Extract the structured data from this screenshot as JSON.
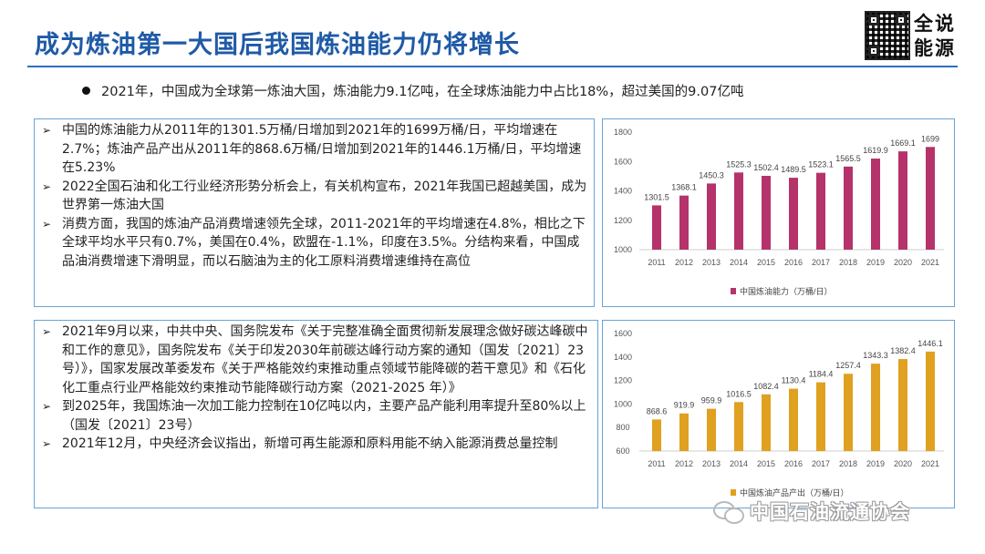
{
  "title": "成为炼油第一大国后我国炼油能力仍将增长",
  "logo": {
    "line1": "全说",
    "line2": "能源"
  },
  "top_bullet": "2021年，中国成为全球第一炼油大国，炼油能力9.1亿吨，在全球炼油能力中占比18%，超过美国的9.07亿吨",
  "box1": {
    "items": [
      "中国的炼油能力从2011年的1301.5万桶/日增加到2021年的1699万桶/日，平均增速在2.7%；炼油产品产出从2011年的868.6万桶/日增加到2021年的1446.1万桶/日，平均增速在5.23%",
      "2022全国石油和化工行业经济形势分析会上，有关机构宣布，2021年我国已超越美国，成为世界第一炼油大国",
      "消费方面，我国的炼油产品消费增速领先全球，2011-2021年的平均增速在4.8%，相比之下全球平均水平只有0.7%，美国在0.4%，欧盟在-1.1%，印度在3.5%。分结构来看，中国成品油消费增速下滑明显，而以石脑油为主的化工原料消费增速维持在高位"
    ]
  },
  "box2": {
    "items": [
      "2021年9月以来，中共中央、国务院发布《关于完整准确全面贯彻新发展理念做好碳达峰碳中和工作的意见》，国务院发布《关于印发2030年前碳达峰行动方案的通知（国发〔2021〕23号）》，国家发展改革委发布《关于严格能效约束推动重点领域节能降碳的若干意见》和《石化化工重点行业严格能效约束推动节能降碳行动方案（2021-2025 年）》",
      "到2025年，我国炼油一次加工能力控制在10亿吨以内，主要产品产能利用率提升至80%以上（国发〔2021〕23号）",
      "2021年12月，中央经济会议指出，新增可再生能源和原料用能不纳入能源消费总量控制"
    ]
  },
  "watermark": "中国石油流通协会",
  "chart_data": [
    {
      "type": "bar",
      "categories": [
        "2011",
        "2012",
        "2013",
        "2014",
        "2015",
        "2016",
        "2017",
        "2018",
        "2019",
        "2020",
        "2021"
      ],
      "values": [
        1301.5,
        1368.1,
        1450.3,
        1525.3,
        1502.4,
        1489.5,
        1523.1,
        1565.5,
        1619.9,
        1669.1,
        1699
      ],
      "value_labels": [
        "1301.5",
        "1368.1",
        "1450.3",
        "1525.3",
        "1502.4",
        "1489.5",
        "1523.1",
        "1565.5",
        "1619.9",
        "1669.1",
        "1699"
      ],
      "yticks": [
        "1000",
        "1200",
        "1400",
        "1600",
        "1800"
      ],
      "ylim": [
        1000,
        1800
      ],
      "legend": "中国炼油能力（万桶/日）",
      "legend_position": "bottom",
      "color": "#b5336a",
      "grid": false
    },
    {
      "type": "bar",
      "categories": [
        "2011",
        "2012",
        "2013",
        "2014",
        "2015",
        "2016",
        "2017",
        "2018",
        "2019",
        "2020",
        "2021"
      ],
      "values": [
        868.6,
        919.9,
        959.9,
        1016.5,
        1082.4,
        1130.4,
        1184.4,
        1257.4,
        1343.3,
        1382.4,
        1446.1
      ],
      "value_labels": [
        "868.6",
        "919.9",
        "959.9",
        "1016.5",
        "1082.4",
        "1130.4",
        "1184.4",
        "1257.4",
        "1343.3",
        "1382.4",
        "1446.1"
      ],
      "yticks": [
        "600",
        "800",
        "1000",
        "1200",
        "1400",
        "1600"
      ],
      "ylim": [
        600,
        1600
      ],
      "legend": "中国炼油产品产出（万桶/日）",
      "legend_position": "bottom",
      "color": "#e0a020",
      "grid": false
    }
  ]
}
